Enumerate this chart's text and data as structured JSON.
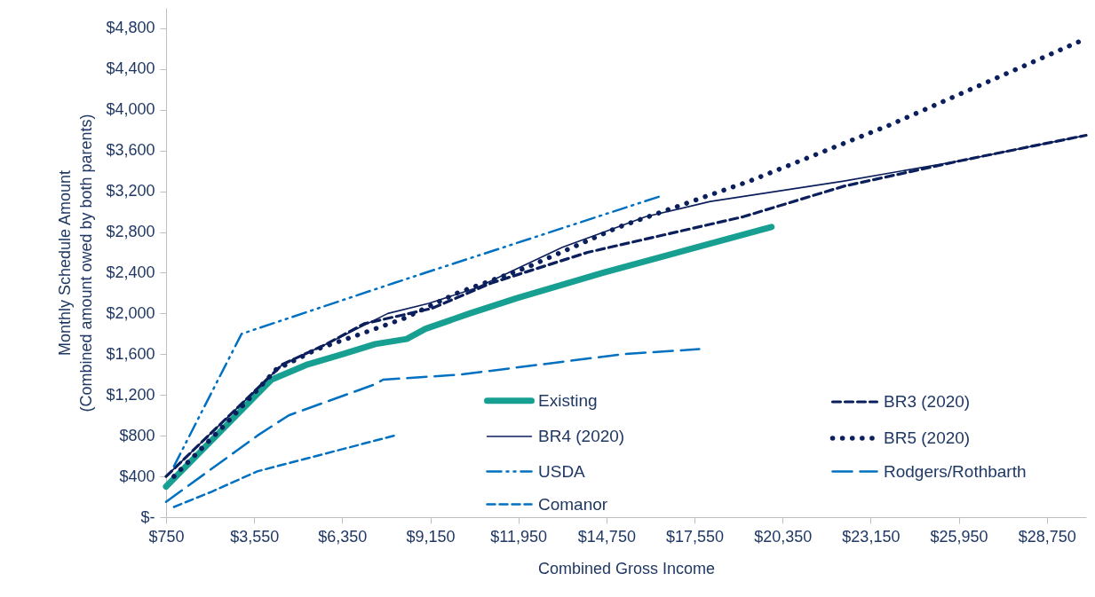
{
  "chart_data": {
    "type": "line",
    "xlabel": "Combined Gross Income",
    "ylabel": "Monthly  Schedule Amount\n(Combined amount owed by both parents)",
    "xlim": [
      750,
      30000
    ],
    "xticks": [
      {
        "value": 750,
        "label": "$750"
      },
      {
        "value": 3550,
        "label": "$3,550"
      },
      {
        "value": 6350,
        "label": "$6,350"
      },
      {
        "value": 9150,
        "label": "$9,150"
      },
      {
        "value": 11950,
        "label": "$11,950"
      },
      {
        "value": 14750,
        "label": "$14,750"
      },
      {
        "value": 17550,
        "label": "$17,550"
      },
      {
        "value": 20350,
        "label": "$20,350"
      },
      {
        "value": 23150,
        "label": "$23,150"
      },
      {
        "value": 25950,
        "label": "$25,950"
      },
      {
        "value": 28750,
        "label": "$28,750"
      }
    ],
    "ylim": [
      0,
      5000
    ],
    "yticks": [
      {
        "value": 0,
        "label": "$-"
      },
      {
        "value": 400,
        "label": "$400"
      },
      {
        "value": 800,
        "label": "$800"
      },
      {
        "value": 1200,
        "label": "$1,200"
      },
      {
        "value": 1600,
        "label": "$1,600"
      },
      {
        "value": 2000,
        "label": "$2,000"
      },
      {
        "value": 2400,
        "label": "$2,400"
      },
      {
        "value": 2800,
        "label": "$2,800"
      },
      {
        "value": 3200,
        "label": "$3,200"
      },
      {
        "value": 3600,
        "label": "$3,600"
      },
      {
        "value": 4000,
        "label": "$4,000"
      },
      {
        "value": 4400,
        "label": "$4,400"
      },
      {
        "value": 4800,
        "label": "$4,800"
      }
    ],
    "grid": false,
    "legend": "bottom right",
    "marker": "none",
    "series": [
      {
        "name": "Existing",
        "color": "#17a091",
        "line_style": "solid",
        "x": [
          750,
          4100,
          5250,
          6350,
          7400,
          8400,
          9000,
          10400,
          11900,
          14650,
          20000
        ],
        "values": [
          300,
          1350,
          1500,
          1600,
          1700,
          1750,
          1850,
          2000,
          2150,
          2400,
          2850
        ]
      },
      {
        "name": "BR3 (2020)",
        "color": "#0b1f5c",
        "line_style": "dashed",
        "x": [
          750,
          2600,
          4450,
          5850,
          7050,
          9200,
          11100,
          14150,
          19100,
          22300,
          26000,
          30000
        ],
        "values": [
          400,
          950,
          1500,
          1700,
          1900,
          2050,
          2300,
          2600,
          2950,
          3250,
          3500,
          3750
        ]
      },
      {
        "name": "BR4 (2020)",
        "color": "#0b1f5c",
        "line_style": "solid",
        "x": [
          750,
          2600,
          4450,
          5850,
          7800,
          9100,
          10600,
          13350,
          16000,
          18050,
          22300,
          26000,
          30000
        ],
        "values": [
          400,
          950,
          1500,
          1700,
          2000,
          2100,
          2250,
          2650,
          2950,
          3100,
          3300,
          3500,
          3750
        ]
      },
      {
        "name": "BR5 (2020)",
        "color": "#0b1f5c",
        "line_style": "dotted",
        "x": [
          1000,
          2600,
          4250,
          5550,
          6950,
          8300,
          10000,
          12200,
          15150,
          19300,
          23750,
          30000
        ],
        "values": [
          400,
          900,
          1450,
          1650,
          1800,
          1950,
          2200,
          2450,
          2850,
          3300,
          3850,
          4700
        ]
      },
      {
        "name": "USDA",
        "color": "#0070c0",
        "line_style": "dash-dot-dot",
        "x": [
          1000,
          3150,
          8000,
          16450
        ],
        "values": [
          500,
          1800,
          2300,
          3150
        ]
      },
      {
        "name": "Rodgers/Rothbarth",
        "color": "#0070c0",
        "line_style": "long-dash",
        "x": [
          750,
          3650,
          4650,
          7350,
          7650,
          10100,
          15250,
          17700
        ],
        "values": [
          150,
          800,
          1000,
          1300,
          1350,
          1400,
          1600,
          1650
        ]
      },
      {
        "name": "Comanor",
        "color": "#0070c0",
        "line_style": "dashed",
        "x": [
          1000,
          2200,
          3650,
          8000
        ],
        "values": [
          100,
          250,
          450,
          800
        ]
      }
    ]
  }
}
